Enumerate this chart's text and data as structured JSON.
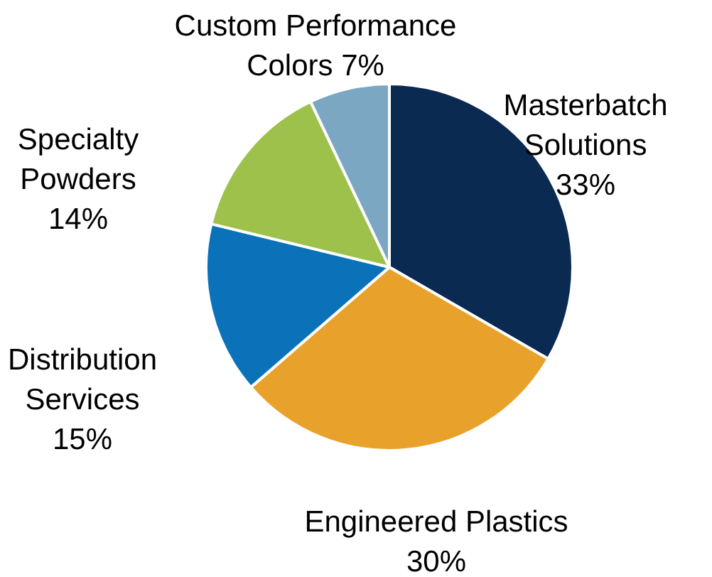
{
  "chart_data": {
    "type": "pie",
    "categories": [
      "Masterbatch Solutions",
      "Engineered Plastics",
      "Distribution Services",
      "Specialty Powders",
      "Custom Performance Colors"
    ],
    "values": [
      33,
      30,
      15,
      14,
      7
    ],
    "colors": [
      "#0b2a52",
      "#e8a22b",
      "#0b72b9",
      "#9dc14b",
      "#7ba7c2"
    ],
    "value_labels": [
      "33%",
      "30%",
      "15%",
      "14%",
      "7%"
    ]
  }
}
